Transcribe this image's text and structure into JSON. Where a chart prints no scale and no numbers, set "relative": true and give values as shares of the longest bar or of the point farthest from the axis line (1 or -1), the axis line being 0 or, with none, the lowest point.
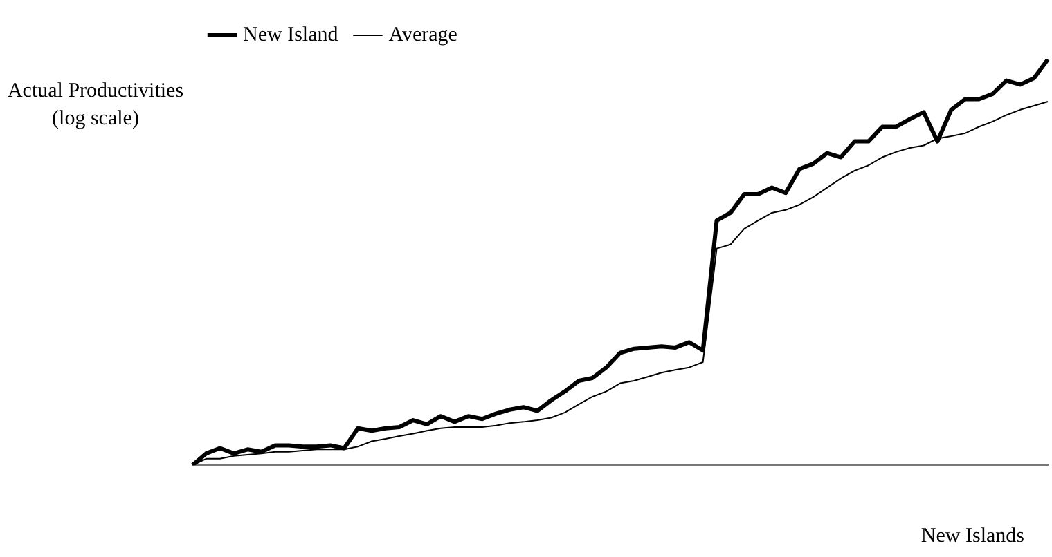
{
  "chart_data": {
    "type": "line",
    "relative": true,
    "ylabel": "Actual Productivities (log scale)",
    "xlabel": "New Islands",
    "legend": "top left",
    "marker": "none",
    "grid": false,
    "categories": [
      null,
      null,
      null,
      null,
      null,
      null,
      null,
      null,
      null,
      null,
      null,
      null,
      null,
      null,
      null,
      null,
      null,
      null,
      null,
      null,
      null,
      null,
      null,
      null,
      null,
      null,
      null,
      null,
      null,
      null,
      null,
      null,
      null,
      null,
      null,
      null,
      null,
      null,
      null,
      null,
      null,
      null,
      null,
      null,
      null,
      null,
      null,
      null,
      null,
      null,
      null,
      null,
      null,
      null,
      null,
      null,
      null,
      null,
      null,
      null,
      null,
      null,
      null
    ],
    "series": [
      {
        "name": "New Island",
        "color": "#000000",
        "values": [
          0,
          0.029,
          0.042,
          0.029,
          0.039,
          0.033,
          0.049,
          0.049,
          0.046,
          0.046,
          0.049,
          0.042,
          0.091,
          0.085,
          0.091,
          0.094,
          0.111,
          0.101,
          0.121,
          0.107,
          0.121,
          0.114,
          0.127,
          0.137,
          0.143,
          0.134,
          0.16,
          0.182,
          0.208,
          0.215,
          0.241,
          0.277,
          0.287,
          0.29,
          0.293,
          0.29,
          0.303,
          0.283,
          0.603,
          0.622,
          0.668,
          0.668,
          0.684,
          0.671,
          0.73,
          0.743,
          0.769,
          0.759,
          0.798,
          0.798,
          0.834,
          0.834,
          0.853,
          0.87,
          0.798,
          0.876,
          0.902,
          0.902,
          0.915,
          0.948,
          0.938,
          0.954,
          1
        ]
      },
      {
        "name": "Average",
        "color": "#000000",
        "values": [
          0,
          0.016,
          0.016,
          0.023,
          0.026,
          0.029,
          0.033,
          0.033,
          0.036,
          0.039,
          0.039,
          0.039,
          0.046,
          0.059,
          0.065,
          0.072,
          0.078,
          0.085,
          0.091,
          0.094,
          0.094,
          0.094,
          0.098,
          0.104,
          0.107,
          0.111,
          0.117,
          0.13,
          0.15,
          0.169,
          0.182,
          0.202,
          0.208,
          0.218,
          0.228,
          0.235,
          0.241,
          0.254,
          0.534,
          0.544,
          0.583,
          0.603,
          0.622,
          0.629,
          0.642,
          0.661,
          0.684,
          0.707,
          0.726,
          0.739,
          0.759,
          0.772,
          0.782,
          0.788,
          0.805,
          0.811,
          0.818,
          0.834,
          0.847,
          0.863,
          0.876,
          0.886,
          0.896
        ]
      }
    ]
  }
}
